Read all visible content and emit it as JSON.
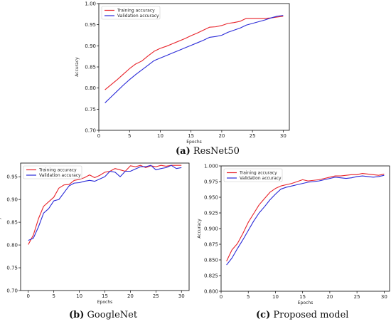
{
  "colors": {
    "training": "#e8232a",
    "validation": "#2a2ad8"
  },
  "captions": [
    {
      "letter": "(a)",
      "text": "ResNet50"
    },
    {
      "letter": "(b)",
      "text": "GoogleNet"
    },
    {
      "letter": "(c)",
      "text": "Proposed model"
    }
  ],
  "chart_data": [
    {
      "type": "line",
      "title": "",
      "xlabel": "Epochs",
      "ylabel": "Accuracy",
      "xlim": [
        0,
        31
      ],
      "ylim": [
        0.7,
        1.0
      ],
      "xticks": [
        0,
        5,
        10,
        15,
        20,
        25,
        30
      ],
      "yticks": [
        0.7,
        0.75,
        0.8,
        0.85,
        0.9,
        0.95,
        1.0
      ],
      "ytick_format": 2,
      "legend": "top-left",
      "grid": false,
      "x": [
        1,
        2,
        3,
        4,
        5,
        6,
        7,
        8,
        9,
        10,
        11,
        12,
        13,
        14,
        15,
        16,
        17,
        18,
        19,
        20,
        21,
        22,
        23,
        24,
        25,
        26,
        27,
        28,
        29,
        30
      ],
      "series": [
        {
          "name": "Training accuracy",
          "color": "#e8232a",
          "values": [
            0.796,
            0.808,
            0.82,
            0.833,
            0.846,
            0.857,
            0.864,
            0.876,
            0.887,
            0.894,
            0.899,
            0.905,
            0.911,
            0.917,
            0.924,
            0.93,
            0.937,
            0.944,
            0.945,
            0.948,
            0.953,
            0.955,
            0.958,
            0.965,
            0.965,
            0.965,
            0.965,
            0.966,
            0.968,
            0.97
          ]
        },
        {
          "name": "Validation accuracy",
          "color": "#2a2ad8",
          "values": [
            0.765,
            0.779,
            0.793,
            0.807,
            0.82,
            0.832,
            0.843,
            0.854,
            0.865,
            0.871,
            0.877,
            0.883,
            0.889,
            0.895,
            0.901,
            0.907,
            0.913,
            0.92,
            0.922,
            0.925,
            0.932,
            0.937,
            0.942,
            0.949,
            0.953,
            0.957,
            0.961,
            0.966,
            0.97,
            0.972
          ]
        }
      ]
    },
    {
      "type": "line",
      "title": "",
      "xlabel": "Epochs",
      "ylabel": "Accuracy",
      "xlim": [
        -1.5,
        31.5
      ],
      "ylim": [
        0.7,
        0.98
      ],
      "xticks": [
        0,
        5,
        10,
        15,
        20,
        25,
        30
      ],
      "yticks": [
        0.7,
        0.75,
        0.8,
        0.85,
        0.9,
        0.95
      ],
      "ytick_format": 2,
      "legend": "top-left",
      "grid": false,
      "x": [
        0,
        1,
        2,
        3,
        4,
        5,
        6,
        7,
        8,
        9,
        10,
        11,
        12,
        13,
        14,
        15,
        16,
        17,
        18,
        19,
        20,
        21,
        22,
        23,
        24,
        25,
        26,
        27,
        28,
        29,
        30
      ],
      "series": [
        {
          "name": "Training accuracy",
          "color": "#e8232a",
          "values": [
            0.801,
            0.822,
            0.858,
            0.885,
            0.895,
            0.905,
            0.925,
            0.932,
            0.933,
            0.942,
            0.944,
            0.948,
            0.954,
            0.948,
            0.953,
            0.96,
            0.962,
            0.968,
            0.965,
            0.962,
            0.974,
            0.972,
            0.975,
            0.97,
            0.974,
            0.972,
            0.975,
            0.973,
            0.975,
            0.975,
            0.975
          ]
        },
        {
          "name": "Validation accuracy",
          "color": "#2a2ad8",
          "values": [
            0.81,
            0.815,
            0.84,
            0.87,
            0.88,
            0.897,
            0.9,
            0.915,
            0.93,
            0.936,
            0.937,
            0.94,
            0.942,
            0.94,
            0.945,
            0.95,
            0.962,
            0.96,
            0.95,
            0.962,
            0.962,
            0.967,
            0.972,
            0.972,
            0.975,
            0.965,
            0.968,
            0.97,
            0.975,
            0.968,
            0.97
          ]
        }
      ]
    },
    {
      "type": "line",
      "title": "",
      "xlabel": "Epochs",
      "ylabel": "Accuracy",
      "xlim": [
        0,
        31
      ],
      "ylim": [
        0.8,
        1.0
      ],
      "xticks": [
        0,
        5,
        10,
        15,
        20,
        25,
        30
      ],
      "yticks": [
        0.8,
        0.825,
        0.85,
        0.875,
        0.9,
        0.925,
        0.95,
        0.975,
        1.0
      ],
      "ytick_format": 3,
      "legend": "top-left",
      "grid": false,
      "x": [
        1,
        2,
        3,
        4,
        5,
        6,
        7,
        8,
        9,
        10,
        11,
        12,
        13,
        14,
        15,
        16,
        17,
        18,
        19,
        20,
        21,
        22,
        23,
        24,
        25,
        26,
        27,
        28,
        29,
        30
      ],
      "series": [
        {
          "name": "Training accuracy",
          "color": "#e8232a",
          "values": [
            0.848,
            0.866,
            0.876,
            0.892,
            0.91,
            0.924,
            0.938,
            0.948,
            0.958,
            0.964,
            0.968,
            0.97,
            0.972,
            0.975,
            0.978,
            0.976,
            0.977,
            0.978,
            0.98,
            0.982,
            0.984,
            0.984,
            0.985,
            0.986,
            0.986,
            0.988,
            0.987,
            0.986,
            0.985,
            0.987
          ]
        },
        {
          "name": "Validation accuracy",
          "color": "#2a2ad8",
          "values": [
            0.842,
            0.853,
            0.868,
            0.882,
            0.897,
            0.912,
            0.925,
            0.935,
            0.946,
            0.955,
            0.963,
            0.966,
            0.968,
            0.97,
            0.972,
            0.974,
            0.975,
            0.976,
            0.978,
            0.98,
            0.982,
            0.981,
            0.98,
            0.981,
            0.983,
            0.984,
            0.983,
            0.982,
            0.983,
            0.985
          ]
        }
      ]
    }
  ]
}
